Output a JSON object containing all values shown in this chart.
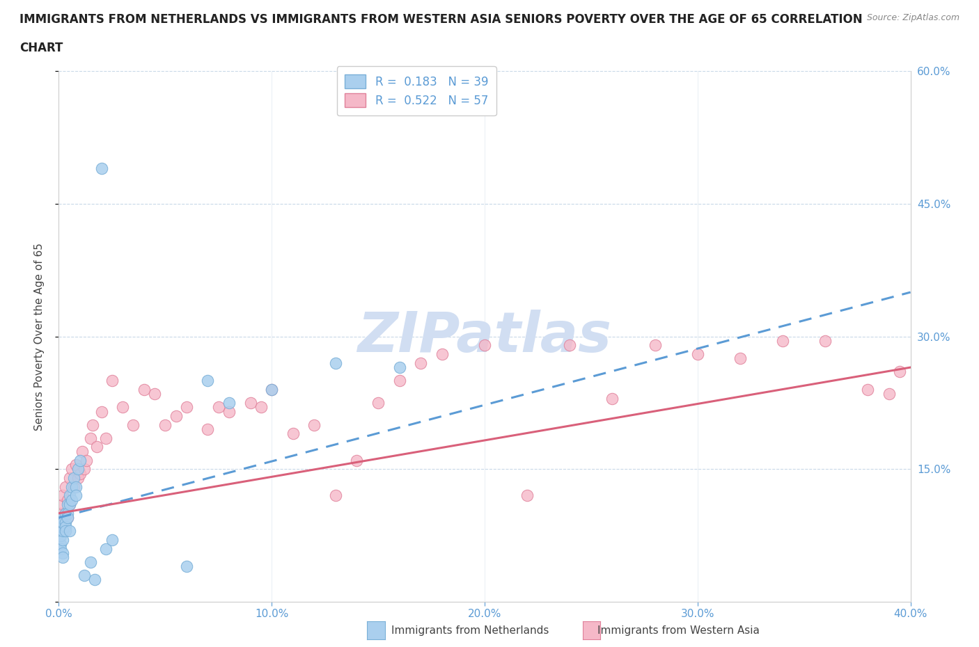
{
  "title": "IMMIGRANTS FROM NETHERLANDS VS IMMIGRANTS FROM WESTERN ASIA SENIORS POVERTY OVER THE AGE OF 65 CORRELATION\nCHART",
  "source_text": "Source: ZipAtlas.com",
  "ylabel": "Seniors Poverty Over the Age of 65",
  "xlim": [
    0.0,
    0.4
  ],
  "ylim": [
    0.0,
    0.6
  ],
  "xtick_vals": [
    0.0,
    0.1,
    0.2,
    0.3,
    0.4
  ],
  "xticklabels": [
    "0.0%",
    "10.0%",
    "20.0%",
    "30.0%",
    "40.0%"
  ],
  "yticks_right": [
    0.15,
    0.3,
    0.45,
    0.6
  ],
  "ytick_right_labels": [
    "15.0%",
    "30.0%",
    "45.0%",
    "60.0%"
  ],
  "netherlands_color": "#aacfee",
  "netherlands_edge": "#7ab0d8",
  "western_asia_color": "#f5b8c8",
  "western_asia_edge": "#e0809a",
  "trend_netherlands_color": "#5b9bd5",
  "trend_western_asia_color": "#d9607a",
  "watermark": "ZIPatlas",
  "watermark_color_r": 0.82,
  "watermark_color_g": 0.87,
  "watermark_color_b": 0.95,
  "R_netherlands": 0.183,
  "N_netherlands": 39,
  "R_western_asia": 0.522,
  "N_western_asia": 57,
  "nl_trend_x0": 0.0,
  "nl_trend_y0": 0.095,
  "nl_trend_x1": 0.4,
  "nl_trend_y1": 0.35,
  "wa_trend_x0": 0.0,
  "wa_trend_y0": 0.1,
  "wa_trend_x1": 0.4,
  "wa_trend_y1": 0.265,
  "netherlands_x": [
    0.001,
    0.001,
    0.001,
    0.001,
    0.001,
    0.002,
    0.002,
    0.002,
    0.002,
    0.002,
    0.003,
    0.003,
    0.003,
    0.003,
    0.004,
    0.004,
    0.004,
    0.005,
    0.005,
    0.005,
    0.006,
    0.006,
    0.007,
    0.008,
    0.008,
    0.009,
    0.01,
    0.012,
    0.015,
    0.017,
    0.02,
    0.022,
    0.025,
    0.06,
    0.07,
    0.08,
    0.1,
    0.13,
    0.16
  ],
  "netherlands_y": [
    0.065,
    0.075,
    0.085,
    0.095,
    0.06,
    0.07,
    0.08,
    0.09,
    0.055,
    0.05,
    0.1,
    0.09,
    0.085,
    0.08,
    0.11,
    0.1,
    0.095,
    0.12,
    0.11,
    0.08,
    0.13,
    0.115,
    0.14,
    0.13,
    0.12,
    0.15,
    0.16,
    0.03,
    0.045,
    0.025,
    0.49,
    0.06,
    0.07,
    0.04,
    0.25,
    0.225,
    0.24,
    0.27,
    0.265
  ],
  "western_asia_x": [
    0.001,
    0.001,
    0.002,
    0.002,
    0.003,
    0.003,
    0.004,
    0.004,
    0.005,
    0.005,
    0.006,
    0.007,
    0.008,
    0.009,
    0.01,
    0.011,
    0.012,
    0.013,
    0.015,
    0.016,
    0.018,
    0.02,
    0.022,
    0.025,
    0.03,
    0.035,
    0.04,
    0.045,
    0.05,
    0.055,
    0.06,
    0.07,
    0.075,
    0.08,
    0.09,
    0.095,
    0.1,
    0.11,
    0.12,
    0.13,
    0.14,
    0.15,
    0.16,
    0.17,
    0.18,
    0.2,
    0.22,
    0.24,
    0.26,
    0.28,
    0.3,
    0.32,
    0.34,
    0.36,
    0.38,
    0.39,
    0.395
  ],
  "western_asia_y": [
    0.1,
    0.09,
    0.11,
    0.12,
    0.1,
    0.13,
    0.115,
    0.095,
    0.14,
    0.11,
    0.15,
    0.13,
    0.155,
    0.14,
    0.145,
    0.17,
    0.15,
    0.16,
    0.185,
    0.2,
    0.175,
    0.215,
    0.185,
    0.25,
    0.22,
    0.2,
    0.24,
    0.235,
    0.2,
    0.21,
    0.22,
    0.195,
    0.22,
    0.215,
    0.225,
    0.22,
    0.24,
    0.19,
    0.2,
    0.12,
    0.16,
    0.225,
    0.25,
    0.27,
    0.28,
    0.29,
    0.12,
    0.29,
    0.23,
    0.29,
    0.28,
    0.275,
    0.295,
    0.295,
    0.24,
    0.235,
    0.26
  ]
}
